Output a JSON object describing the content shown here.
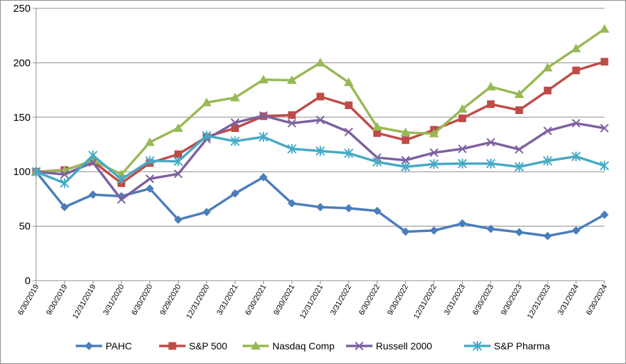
{
  "chart_data": {
    "type": "line",
    "title": "",
    "xlabel": "",
    "ylabel": "",
    "ylim": [
      0,
      250
    ],
    "yticks": [
      0,
      50,
      100,
      150,
      200,
      250
    ],
    "grid": "horizontal",
    "legend_position": "bottom",
    "categories": [
      "6/30/2019",
      "9/30/2019",
      "12/31/2019",
      "3/31/2020",
      "6/30/2020",
      "9/29/2020",
      "12/31/2020",
      "3/31/2021",
      "6/30/2021",
      "9/30/2021",
      "12/31/2021",
      "3/31/2022",
      "6/30/2022",
      "9/30/2022",
      "12/31/2022",
      "3/31/2023",
      "6/30/2023",
      "9/30/2023",
      "12/31/2023",
      "3/31/2024",
      "6/30/2024"
    ],
    "series": [
      {
        "name": "PAHC",
        "color": "#4a7ebb",
        "marker": "diamond",
        "values": [
          100,
          67.5,
          79,
          77.5,
          84.5,
          56,
          63,
          80,
          95,
          71,
          67.5,
          66.5,
          64,
          45,
          46,
          52.5,
          47.5,
          44.5,
          41,
          46,
          60.5
        ]
      },
      {
        "name": "S&P 500",
        "color": "#be4b48",
        "marker": "square",
        "values": [
          100,
          101.5,
          109.5,
          89.5,
          108,
          116,
          132,
          140,
          151,
          152,
          169,
          161,
          135.5,
          129,
          138.5,
          149,
          162,
          156.5,
          174.5,
          193,
          201
        ]
      },
      {
        "name": "Nasdaq Comp",
        "color": "#98b954",
        "marker": "triangle",
        "values": [
          100,
          101,
          110.5,
          97.5,
          127,
          140,
          163.5,
          168,
          184.5,
          184,
          200,
          182,
          141,
          136,
          135,
          157.5,
          178,
          171,
          195.5,
          213,
          231
        ]
      },
      {
        "name": "Russell 2000",
        "color": "#7d60a0",
        "marker": "x",
        "values": [
          100,
          97.5,
          108.5,
          74.5,
          93.5,
          98,
          130,
          145,
          151.5,
          144.5,
          147.5,
          136.5,
          113,
          110.5,
          117.5,
          121,
          127,
          120.5,
          137.5,
          144.5,
          140
        ]
      },
      {
        "name": "S&P Pharma",
        "color": "#46aac5",
        "marker": "star",
        "values": [
          100,
          89.5,
          115,
          93,
          110,
          109.5,
          133,
          128,
          132,
          121,
          119,
          117,
          109,
          104.5,
          107,
          107.5,
          107.5,
          104.5,
          110,
          114,
          105.5
        ]
      }
    ]
  }
}
